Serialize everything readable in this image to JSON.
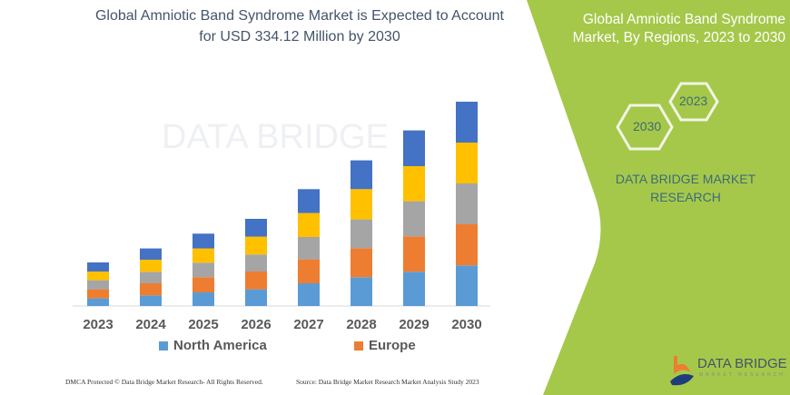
{
  "title_line1": "Global Amniotic Band Syndrome Market is Expected to Account",
  "title_line2": "for USD 334.12 Million by 2030",
  "panel": {
    "title_line1": "Global Amniotic Band Syndrome",
    "title_line2": "Market, By Regions, 2023 to 2030",
    "hex_left": "2030",
    "hex_right": "2023",
    "brand_line1": "DATA BRIDGE MARKET",
    "brand_line2": "RESEARCH",
    "bg_color": "#A5C84A"
  },
  "watermark": "DATA BRIDGE",
  "logo": {
    "name": "DATA BRIDGE",
    "tagline": "MARKET RESEARCH",
    "icon": "data-bridge-logo-icon"
  },
  "footer": {
    "left": "DMCA Protected © Data Bridge Market Research-  All Rights Reserved.",
    "right": "Source: Data Bridge Market Research  Market Analysis Study 2023"
  },
  "chart_data": {
    "type": "bar",
    "stacked": true,
    "title": "Global Amniotic Band Syndrome Market is Expected to Account for USD 334.12 Million by 2030",
    "categories": [
      "2023",
      "2024",
      "2025",
      "2026",
      "2027",
      "2028",
      "2029",
      "2030"
    ],
    "ylim": [
      0,
      230
    ],
    "grid": false,
    "y_axis_shown": false,
    "legend_placement": "bottom",
    "series": [
      {
        "name": "North America",
        "color": "#5B9BD5",
        "values": [
          8.4,
          11.7,
          15,
          18.4,
          25,
          31.7,
          37.7,
          44.7
        ]
      },
      {
        "name": "Europe",
        "color": "#ED7D31",
        "values": [
          10,
          13.3,
          16.7,
          19.6,
          26.4,
          32,
          39,
          45.3
        ]
      },
      {
        "color": "#A5A5A5",
        "values": [
          10,
          12.7,
          16,
          18.7,
          24.6,
          31.7,
          38.7,
          45
        ]
      },
      {
        "color": "#FFC000",
        "values": [
          9.6,
          13.3,
          15.7,
          19.7,
          26.4,
          33.3,
          38.6,
          45
        ]
      },
      {
        "color": "#4472C4",
        "values": [
          10,
          12.4,
          16.3,
          19.6,
          26.3,
          31.7,
          39.4,
          45
        ]
      }
    ]
  }
}
